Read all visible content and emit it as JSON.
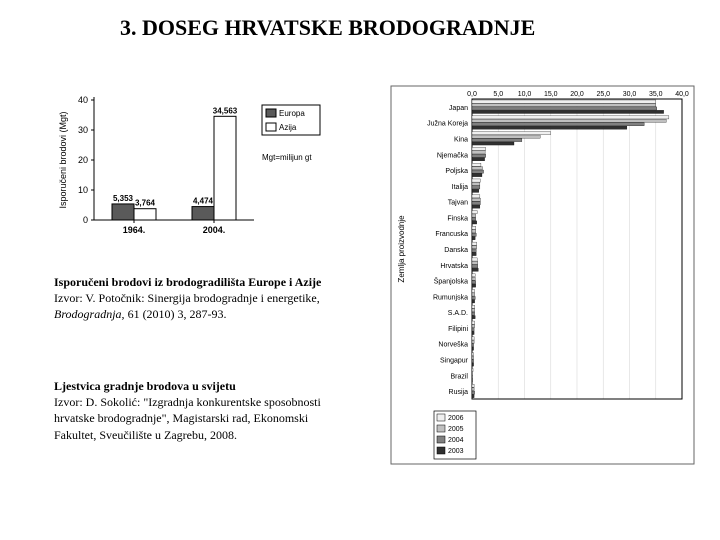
{
  "title": "3.   DOSEG HRVATSKE BRODOGRADNJE",
  "caption1": {
    "bold": "Isporučeni brodovi iz brodogradilišta Europe i Azije",
    "line2a": "Izvor: V. Potočnik: Sinergija brodogradnje i energetike,",
    "line2b_italic": "Brodogradnja,",
    "line2c": " 61 (2010) 3, 287-93."
  },
  "caption2": {
    "bold": "Ljestvica gradnje brodova u svijetu",
    "l2": "Izvor: D. Sokolić: \"Izgradnja konkurentske sposobnosti",
    "l3": "hrvatske brodogradnje\", Magistarski rad, Ekonomski",
    "l4": "Fakultet, Sveučilište u Zagrebu, 2008."
  },
  "left_chart": {
    "type": "bar",
    "ylabel": "Isporučeni brodovi (Mgt)",
    "ylim": [
      0,
      40
    ],
    "ytick_step": 10,
    "categories": [
      "1964.",
      "2004."
    ],
    "series": [
      "Europa",
      "Azija"
    ],
    "values": {
      "1964.": [
        5.353,
        3.764
      ],
      "2004.": [
        4.474,
        34.563
      ]
    },
    "bar_labels": {
      "1964.": [
        "5,353",
        "3,764"
      ],
      "2004.": [
        "4,474",
        "34,563"
      ]
    },
    "colors": {
      "Europa": "#5a5a5a",
      "Azija": "#ffffff"
    },
    "border_color": "#000000",
    "axis_color": "#000000",
    "note": "Mgt=milijun gt",
    "legend_box_bg": "#ffffff",
    "background_color": "#ffffff",
    "tick_fontsize": 9,
    "label_fontsize": 9
  },
  "right_chart": {
    "type": "bar-horizontal-grouped",
    "xlim": [
      0,
      40
    ],
    "xticks": [
      "0,0",
      "5,0",
      "10,0",
      "15,0",
      "20,0",
      "25,0",
      "30,0",
      "35,0",
      "40,0"
    ],
    "ylabel": "Zemlja proizvodnje",
    "countries": [
      "Japan",
      "Južna Koreja",
      "Kina",
      "Njemačka",
      "Poljska",
      "Italija",
      "Tajvan",
      "Finska",
      "Francuska",
      "Danska",
      "Hrvatska",
      "Španjolska",
      "Rumunjska",
      "S.A.D.",
      "Filipini",
      "Norveška",
      "Singapur",
      "Brazil",
      "Rusija"
    ],
    "years": [
      "2006",
      "2005",
      "2004",
      "2003"
    ],
    "year_colors": {
      "2006": "#f0f0f0",
      "2005": "#c0c0c0",
      "2004": "#808080",
      "2003": "#303030"
    },
    "values": {
      "Japan": {
        "2006": 35.0,
        "2005": 35.0,
        "2004": 35.2,
        "2003": 36.5
      },
      "Južna Koreja": {
        "2006": 37.5,
        "2005": 37.0,
        "2004": 32.8,
        "2003": 29.5
      },
      "Kina": {
        "2006": 15.0,
        "2005": 13.0,
        "2004": 9.5,
        "2003": 8.0
      },
      "Njemačka": {
        "2006": 2.6,
        "2005": 2.5,
        "2004": 2.6,
        "2003": 2.4
      },
      "Poljska": {
        "2006": 1.7,
        "2005": 2.0,
        "2004": 2.2,
        "2003": 1.9
      },
      "Italija": {
        "2006": 1.6,
        "2005": 1.5,
        "2004": 1.5,
        "2003": 1.3
      },
      "Tajvan": {
        "2006": 1.5,
        "2005": 1.6,
        "2004": 1.6,
        "2003": 1.5
      },
      "Finska": {
        "2006": 1.0,
        "2005": 0.7,
        "2004": 0.7,
        "2003": 0.9
      },
      "Francuska": {
        "2006": 0.7,
        "2005": 0.7,
        "2004": 0.8,
        "2003": 0.6
      },
      "Danska": {
        "2006": 0.9,
        "2005": 0.9,
        "2004": 0.8,
        "2003": 0.8
      },
      "Hrvatska": {
        "2006": 1.0,
        "2005": 1.1,
        "2004": 1.1,
        "2003": 1.2
      },
      "Španjolska": {
        "2006": 0.6,
        "2005": 0.6,
        "2004": 0.7,
        "2003": 0.7
      },
      "Rumunjska": {
        "2006": 0.5,
        "2005": 0.5,
        "2004": 0.6,
        "2003": 0.5
      },
      "S.A.D.": {
        "2006": 0.5,
        "2005": 0.5,
        "2004": 0.5,
        "2003": 0.6
      },
      "Filipini": {
        "2006": 0.5,
        "2005": 0.5,
        "2004": 0.4,
        "2003": 0.4
      },
      "Norveška": {
        "2006": 0.4,
        "2005": 0.4,
        "2004": 0.3,
        "2003": 0.3
      },
      "Singapur": {
        "2006": 0.3,
        "2005": 0.3,
        "2004": 0.3,
        "2003": 0.3
      },
      "Brazil": {
        "2006": 0.2,
        "2005": 0.1,
        "2004": 0.1,
        "2003": 0.1
      },
      "Rusija": {
        "2006": 0.4,
        "2005": 0.4,
        "2004": 0.5,
        "2003": 0.4
      }
    },
    "axis_color": "#000000",
    "grid_color": "#d8d8d8",
    "background_color": "#ffffff",
    "tick_fontsize": 7,
    "label_fontsize": 8
  }
}
